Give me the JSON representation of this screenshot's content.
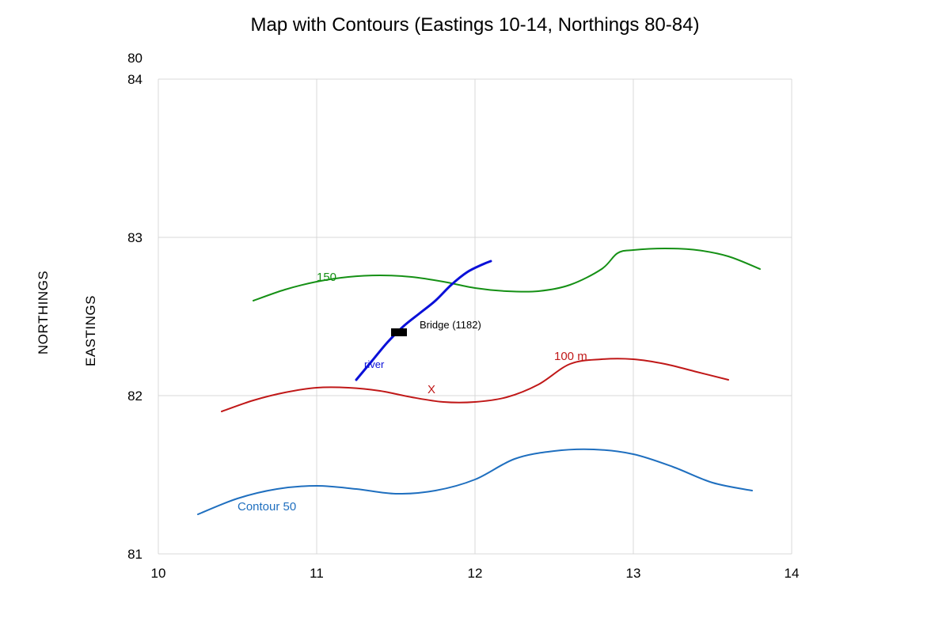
{
  "chart_data": {
    "type": "line",
    "title": "Map with Contours (Eastings 10-14, Northings 80-84)",
    "xlabel": "",
    "ylabel_outer": "NORTHINGS",
    "ylabel_inner": "EASTINGS",
    "xlim": [
      10,
      14
    ],
    "ylim": [
      81,
      84
    ],
    "x_ticks": [
      "10",
      "11",
      "12",
      "13",
      "14"
    ],
    "y_ticks": [
      "81",
      "82",
      "83",
      "84"
    ],
    "extra_y_tick_label": "80",
    "grid": true,
    "series": [
      {
        "name": "Contour 50",
        "color": "#1f6fbf",
        "x": [
          10.25,
          10.5,
          10.75,
          11.0,
          11.25,
          11.5,
          11.75,
          12.0,
          12.25,
          12.5,
          12.75,
          13.0,
          13.25,
          13.5,
          13.75
        ],
        "y": [
          81.25,
          81.35,
          81.41,
          81.43,
          81.41,
          81.38,
          81.4,
          81.47,
          81.6,
          81.65,
          81.66,
          81.63,
          81.55,
          81.45,
          81.4
        ]
      },
      {
        "name": "100 m",
        "color": "#c01818",
        "x": [
          10.4,
          10.6,
          10.8,
          11.0,
          11.2,
          11.4,
          11.6,
          11.8,
          12.0,
          12.2,
          12.4,
          12.6,
          12.8,
          13.0,
          13.2,
          13.4,
          13.6
        ],
        "y": [
          81.9,
          81.97,
          82.02,
          82.05,
          82.05,
          82.03,
          81.99,
          81.96,
          81.96,
          81.99,
          82.07,
          82.2,
          82.23,
          82.23,
          82.2,
          82.15,
          82.1
        ]
      },
      {
        "name": "150",
        "color": "#159015",
        "x": [
          10.6,
          10.8,
          11.0,
          11.2,
          11.4,
          11.6,
          11.8,
          12.0,
          12.2,
          12.4,
          12.6,
          12.8,
          12.9,
          13.0,
          13.2,
          13.4,
          13.6,
          13.8
        ],
        "y": [
          82.6,
          82.67,
          82.72,
          82.75,
          82.76,
          82.75,
          82.72,
          82.68,
          82.66,
          82.66,
          82.7,
          82.8,
          82.9,
          82.92,
          82.93,
          82.92,
          82.88,
          82.8
        ]
      },
      {
        "name": "river",
        "color": "#0a10d8",
        "x": [
          11.25,
          11.35,
          11.45,
          11.55,
          11.65,
          11.75,
          11.85,
          11.95,
          12.05,
          12.1
        ],
        "y": [
          82.1,
          82.22,
          82.34,
          82.44,
          82.52,
          82.6,
          82.7,
          82.78,
          82.83,
          82.85
        ]
      }
    ],
    "annotations": [
      {
        "text": "Contour 50",
        "x": 10.5,
        "y": 81.3,
        "color": "#1f6fbf"
      },
      {
        "text": "100 m",
        "x": 12.5,
        "y": 82.25,
        "color": "#c01818"
      },
      {
        "text": "150",
        "x": 11.0,
        "y": 82.75,
        "color": "#159015"
      },
      {
        "text": "river",
        "x": 11.3,
        "y": 82.2,
        "color": "#0a10d8"
      },
      {
        "text": "X",
        "x": 11.7,
        "y": 82.04,
        "color": "#c01818"
      },
      {
        "text": "Bridge (1182)",
        "x": 11.65,
        "y": 82.45,
        "color": "#000000"
      }
    ],
    "marker": {
      "label": "bridge",
      "x": 11.52,
      "y": 82.4,
      "color": "#000000"
    }
  }
}
